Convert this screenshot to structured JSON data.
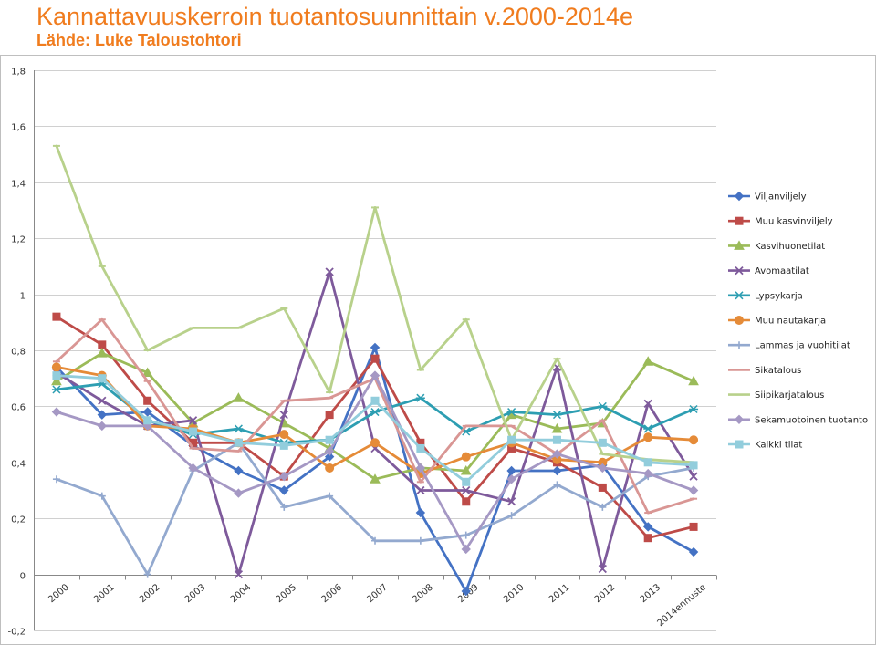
{
  "header": {
    "title": "Kannattavuuskerroin tuotantosuunnittain v.2000-2014e",
    "subtitle": "Lähde: Luke Taloustohtori"
  },
  "chart_data": {
    "type": "line",
    "categories": [
      "2000",
      "2001",
      "2002",
      "2003",
      "2004",
      "2005",
      "2006",
      "2007",
      "2008",
      "2009",
      "2010",
      "2011",
      "2012",
      "2013",
      "2014ennuste"
    ],
    "y_tick_labels": [
      "-0,2",
      "0",
      "0,2",
      "0,4",
      "0,6",
      "0,8",
      "1",
      "1,2",
      "1,4",
      "1,6",
      "1,8"
    ],
    "ylim": [
      -0.2,
      1.8
    ],
    "grid": "horizontal",
    "legend_position": "right",
    "series": [
      {
        "name": "Viljanviljely",
        "color": "#4472c4",
        "marker": "diamond",
        "values": [
          0.74,
          0.57,
          0.58,
          0.46,
          0.37,
          0.3,
          0.42,
          0.81,
          0.22,
          -0.06,
          0.37,
          0.37,
          0.39,
          0.17,
          0.08
        ]
      },
      {
        "name": "Muu kasvinviljely",
        "color": "#be4b48",
        "marker": "square",
        "values": [
          0.92,
          0.82,
          0.62,
          0.47,
          0.47,
          0.35,
          0.57,
          0.77,
          0.47,
          0.26,
          0.45,
          0.4,
          0.31,
          0.13,
          0.17
        ]
      },
      {
        "name": "Kasvihuonetilat",
        "color": "#9bbb59",
        "marker": "triangle",
        "values": [
          0.69,
          0.79,
          0.72,
          0.54,
          0.63,
          0.54,
          0.45,
          0.34,
          0.38,
          0.37,
          0.57,
          0.52,
          0.54,
          0.76,
          0.69
        ]
      },
      {
        "name": "Avomaatilat",
        "color": "#7e5a9b",
        "marker": "x",
        "values": [
          0.72,
          0.62,
          0.53,
          0.55,
          0.0,
          0.57,
          1.08,
          0.45,
          0.3,
          0.3,
          0.26,
          0.74,
          0.02,
          0.61,
          0.35
        ]
      },
      {
        "name": "Lypsykarja",
        "color": "#2d9eb2",
        "marker": "asterisk",
        "values": [
          0.66,
          0.68,
          0.55,
          0.5,
          0.52,
          0.47,
          0.48,
          0.58,
          0.63,
          0.51,
          0.58,
          0.57,
          0.6,
          0.52,
          0.59
        ]
      },
      {
        "name": "Muu nautakarja",
        "color": "#e58b38",
        "marker": "circle",
        "values": [
          0.74,
          0.71,
          0.53,
          0.52,
          0.47,
          0.5,
          0.38,
          0.47,
          0.36,
          0.42,
          0.47,
          0.41,
          0.4,
          0.49,
          0.48
        ]
      },
      {
        "name": "Lammas ja vuohitilat",
        "color": "#93a9cf",
        "marker": "plus",
        "values": [
          0.34,
          0.28,
          0.0,
          0.37,
          0.47,
          0.24,
          0.28,
          0.12,
          0.12,
          0.14,
          0.21,
          0.32,
          0.24,
          0.35,
          0.38
        ]
      },
      {
        "name": "Sikatalous",
        "color": "#d99694",
        "marker": "dash",
        "values": [
          0.76,
          0.91,
          0.69,
          0.45,
          0.44,
          0.62,
          0.63,
          0.7,
          0.33,
          0.53,
          0.53,
          0.43,
          0.55,
          0.22,
          0.27
        ]
      },
      {
        "name": "Siipikarjatalous",
        "color": "#b8d18b",
        "marker": "dash",
        "values": [
          1.53,
          1.1,
          0.8,
          0.88,
          0.88,
          0.95,
          0.65,
          1.31,
          0.73,
          0.91,
          0.48,
          0.77,
          0.43,
          0.41,
          0.4
        ]
      },
      {
        "name": "Sekamuotoinen tuotanto",
        "color": "#a598c4",
        "marker": "diamond",
        "values": [
          0.58,
          0.53,
          0.53,
          0.38,
          0.29,
          0.35,
          0.44,
          0.71,
          0.38,
          0.09,
          0.34,
          0.43,
          0.38,
          0.36,
          0.3
        ]
      },
      {
        "name": "Kaikki tilat",
        "color": "#92cddc",
        "marker": "square",
        "values": [
          0.71,
          0.7,
          0.55,
          0.51,
          0.47,
          0.46,
          0.48,
          0.62,
          0.45,
          0.33,
          0.48,
          0.48,
          0.47,
          0.4,
          0.39
        ]
      }
    ]
  }
}
